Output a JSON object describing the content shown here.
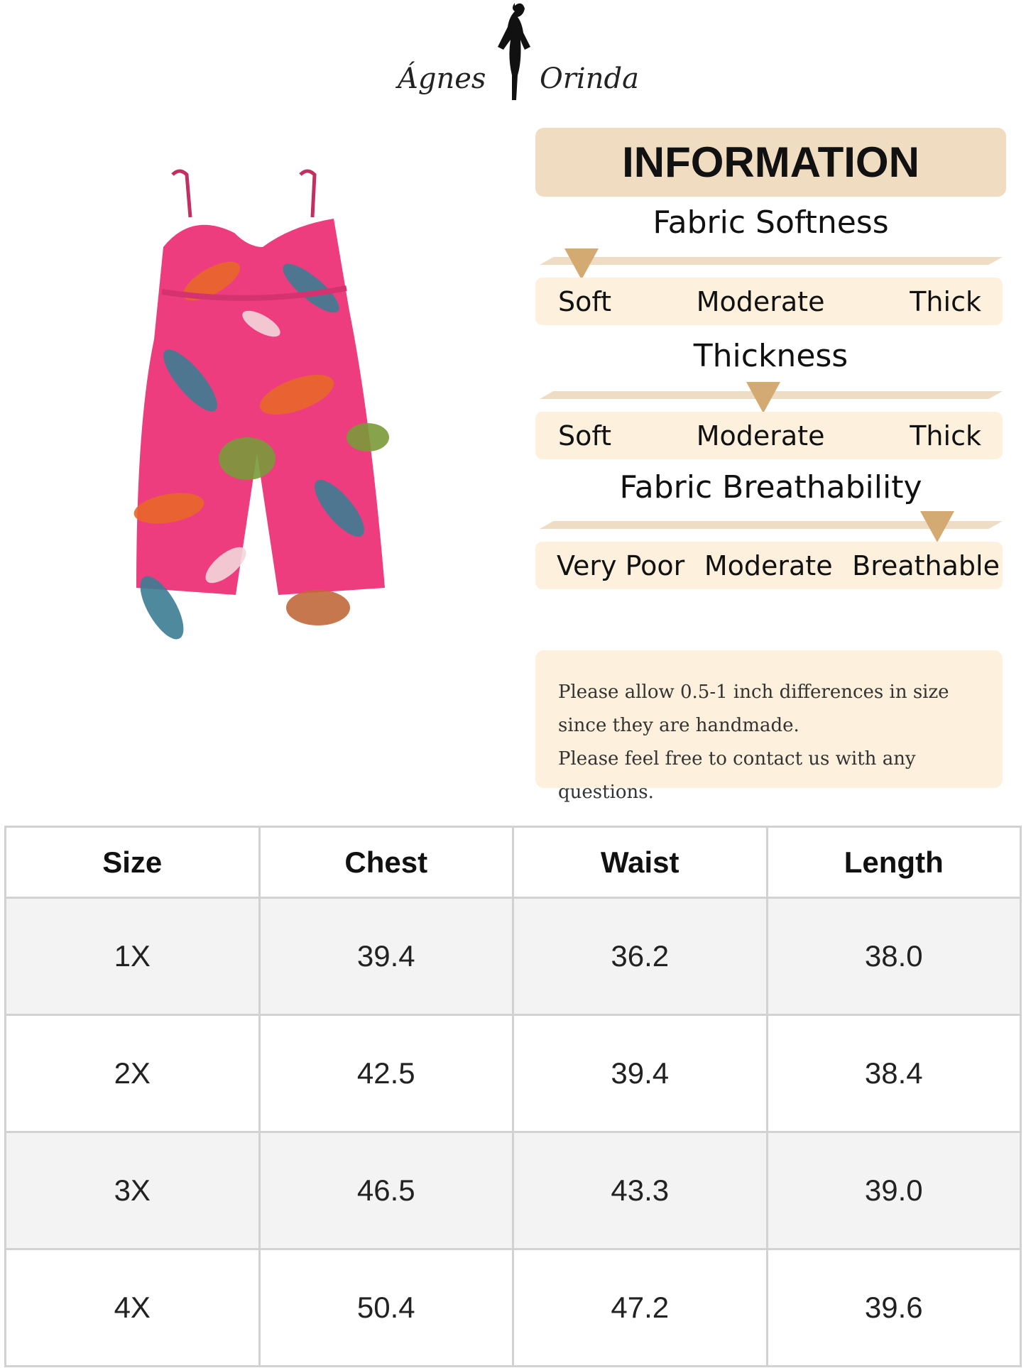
{
  "brand": {
    "name_left": "Ágnes",
    "name_right": "Orinda"
  },
  "info": {
    "title": "INFORMATION",
    "scales": [
      {
        "title": "Fabric Softness",
        "labels": [
          "Soft",
          "Moderate",
          "Thick"
        ],
        "level": 0.05
      },
      {
        "title": "Thickness",
        "labels": [
          "Soft",
          "Moderate",
          "Thick"
        ],
        "level": 0.5
      },
      {
        "title": "Fabric Breathability",
        "labels": [
          "Very Poor",
          "Moderate",
          "Breathable"
        ],
        "level": 0.93
      }
    ],
    "note": [
      "Please allow 0.5-1 inch differences in size",
      "since they are handmade.",
      "Please feel free to contact us with any questions."
    ]
  },
  "colors": {
    "header_bg": "#f0dcc0",
    "label_bg": "#fdf1de",
    "marker": "#d3aa72",
    "fabric_pink": "#ee3d7f"
  },
  "size_table": {
    "headers": [
      "Size",
      "Chest",
      "Waist",
      "Length"
    ],
    "rows": [
      [
        "1X",
        "39.4",
        "36.2",
        "38.0"
      ],
      [
        "2X",
        "42.5",
        "39.4",
        "38.4"
      ],
      [
        "3X",
        "46.5",
        "43.3",
        "39.0"
      ],
      [
        "4X",
        "50.4",
        "47.2",
        "39.6"
      ]
    ]
  }
}
